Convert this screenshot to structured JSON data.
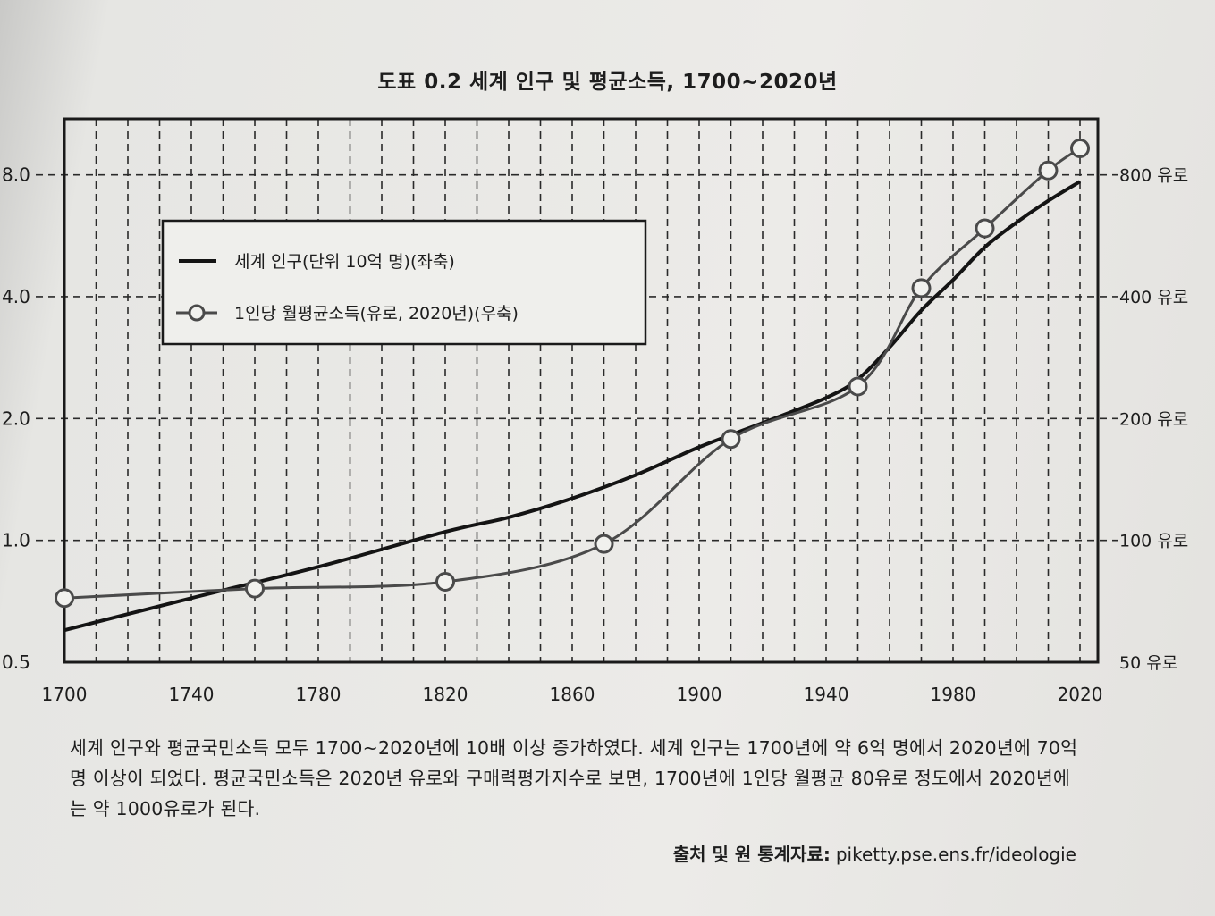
{
  "figure": {
    "title": "도표 0.2 세계 인구 및 평균소득, 1700~2020년"
  },
  "chart_data": {
    "type": "line",
    "title": "도표 0.2 세계 인구 및 평균소득, 1700~2020년",
    "x_ticks": [
      "1700",
      "1740",
      "1780",
      "1820",
      "1860",
      "1900",
      "1940",
      "1980",
      "2020"
    ],
    "xlim": [
      1700,
      2025
    ],
    "left_axis": {
      "scale": "log",
      "ticks": [
        "0.5",
        "1.0",
        "2.0",
        "4.0",
        "8.0"
      ],
      "tick_values": [
        0.5,
        1.0,
        2.0,
        4.0,
        8.0
      ],
      "ylim": [
        0.5,
        11.0
      ]
    },
    "right_axis": {
      "scale": "log",
      "ticks": [
        "50 유로",
        "100 유로",
        "200 유로",
        "400 유로",
        "800 유로"
      ],
      "tick_values": [
        50,
        100,
        200,
        400,
        800
      ],
      "ylim": [
        50,
        1100
      ]
    },
    "grid": true,
    "legend_position": "upper-left",
    "series": [
      {
        "name": "세계 인구(단위 10억 명)(좌축)",
        "axis": "left",
        "style": "line",
        "color": "#141414",
        "points": [
          [
            1700,
            0.6
          ],
          [
            1740,
            0.72
          ],
          [
            1780,
            0.86
          ],
          [
            1820,
            1.05
          ],
          [
            1840,
            1.14
          ],
          [
            1860,
            1.27
          ],
          [
            1880,
            1.45
          ],
          [
            1900,
            1.7
          ],
          [
            1920,
            1.95
          ],
          [
            1940,
            2.25
          ],
          [
            1950,
            2.5
          ],
          [
            1960,
            3.0
          ],
          [
            1970,
            3.7
          ],
          [
            1980,
            4.4
          ],
          [
            1990,
            5.3
          ],
          [
            2000,
            6.1
          ],
          [
            2010,
            6.9
          ],
          [
            2020,
            7.7
          ]
        ]
      },
      {
        "name": "1인당 월평균소득(유로, 2020년)(우축)",
        "axis": "right",
        "style": "line-with-circle-markers",
        "color": "#4a4a4a",
        "points": [
          [
            1700,
            72
          ],
          [
            1760,
            76
          ],
          [
            1820,
            79
          ],
          [
            1870,
            98
          ],
          [
            1910,
            178
          ],
          [
            1950,
            240
          ],
          [
            1970,
            420
          ],
          [
            1990,
            590
          ],
          [
            2010,
            820
          ],
          [
            2020,
            930
          ]
        ]
      }
    ]
  },
  "caption": "세계 인구와 평균국민소득 모두 1700~2020년에 10배 이상 증가하였다. 세계 인구는 1700년에 약 6억 명에서 2020년에 70억 명 이상이 되었다. 평균국민소득은 2020년 유로와 구매력평가지수로 보면, 1700년에 1인당 월평균 80유로 정도에서 2020년에는 약 1000유로가 된다.",
  "source": {
    "label": "출처 및 원 통계자료:",
    "url": "piketty.pse.ens.fr/ideologie"
  }
}
